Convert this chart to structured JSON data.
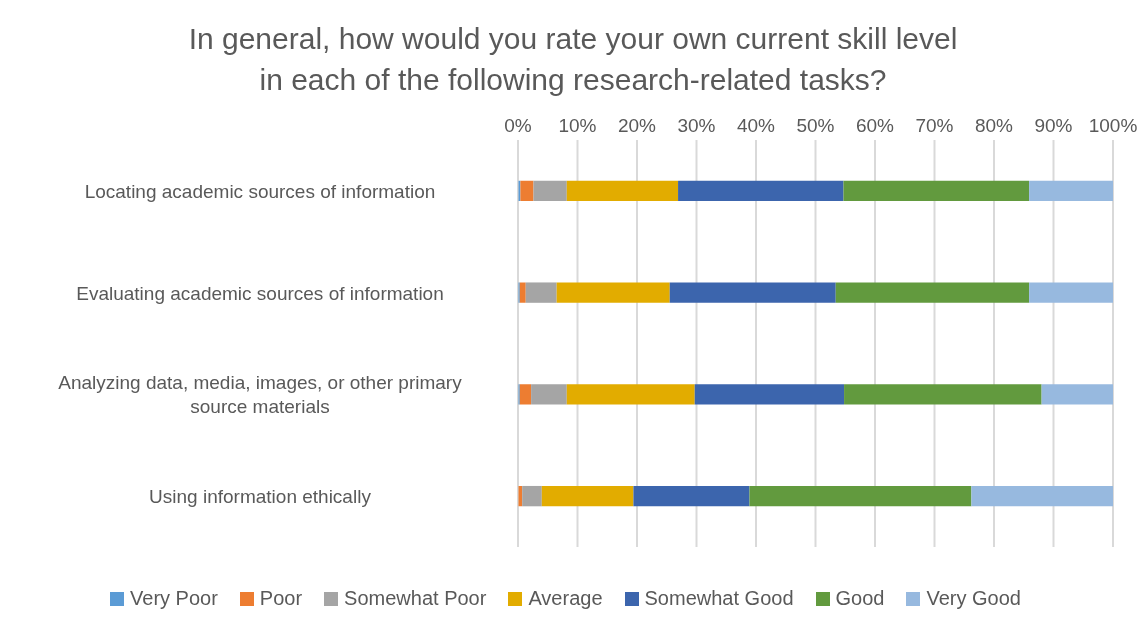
{
  "chart_data": {
    "type": "bar",
    "orientation": "horizontal",
    "stacked": true,
    "title": "In general, how would you rate your own current skill level in each of the following research-related tasks?",
    "categories": [
      "Locating academic sources of information",
      "Evaluating academic sources of information",
      "Analyzing data, media, images, or other primary source materials",
      "Using information ethically"
    ],
    "series": [
      {
        "name": "Very Poor",
        "color": "#5b9bd5",
        "values": [
          0.4,
          0.3,
          0.3,
          0
        ]
      },
      {
        "name": "Poor",
        "color": "#ed7d31",
        "values": [
          2.2,
          1.0,
          1.9,
          0.7
        ]
      },
      {
        "name": "Somewhat Poor",
        "color": "#a5a5a5",
        "values": [
          5.6,
          5.2,
          6.0,
          3.3
        ]
      },
      {
        "name": "Average",
        "color": "#e2ac00",
        "values": [
          18.7,
          19.0,
          21.5,
          15.4
        ]
      },
      {
        "name": "Somewhat Good",
        "color": "#3c65ad",
        "values": [
          27.8,
          27.9,
          25.1,
          19.5
        ]
      },
      {
        "name": "Good",
        "color": "#629a3e",
        "values": [
          31.2,
          32.5,
          33.2,
          37.3
        ]
      },
      {
        "name": "Very Good",
        "color": "#97b9df",
        "values": [
          14.1,
          14.1,
          12.0,
          23.8
        ]
      }
    ],
    "xlim": [
      0,
      100
    ],
    "xticks": [
      {
        "value": 0,
        "label": "0%"
      },
      {
        "value": 10,
        "label": "10%"
      },
      {
        "value": 20,
        "label": "20%"
      },
      {
        "value": 30,
        "label": "30%"
      },
      {
        "value": 40,
        "label": "40%"
      },
      {
        "value": 50,
        "label": "50%"
      },
      {
        "value": 60,
        "label": "60%"
      },
      {
        "value": 70,
        "label": "70%"
      },
      {
        "value": 80,
        "label": "80%"
      },
      {
        "value": 90,
        "label": "90%"
      },
      {
        "value": 100,
        "label": "100%"
      }
    ],
    "grid": "x",
    "legend": "bottom"
  }
}
